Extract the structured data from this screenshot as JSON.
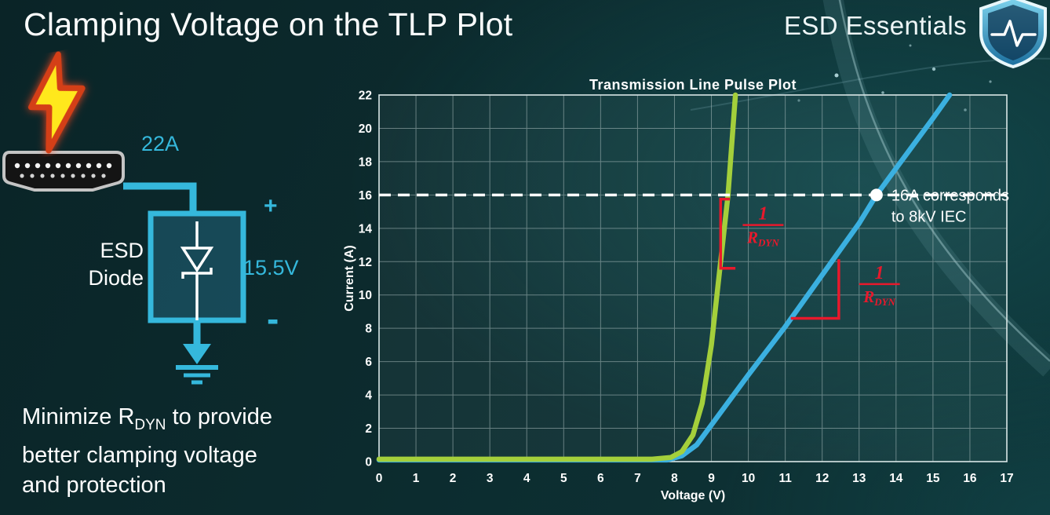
{
  "slide": {
    "title": "Clamping Voltage on the TLP Plot",
    "brand": "ESD Essentials",
    "colors": {
      "background_teal": "#0c2b2e",
      "accent_cyan": "#35b8dc",
      "accent_red": "#e8192c",
      "curve_green": "#a4cf3b",
      "curve_blue": "#3bb0e0",
      "text_white": "#ffffff"
    }
  },
  "diagram": {
    "surge_current": "22A",
    "device_line1": "ESD",
    "device_line2": "Diode",
    "plus_sign": "+",
    "minus_sign": "-",
    "clamp_voltage": "15.5V"
  },
  "caption": {
    "line1_pre": "Minimize R",
    "line1_sub": "DYN",
    "line1_post": " to provide",
    "line2": "better clamping voltage",
    "line3": "and protection"
  },
  "chart_data": {
    "type": "line",
    "title": "Transmission Line Pulse Plot",
    "xlabel": "Voltage (V)",
    "ylabel": "Current (A)",
    "xlim": [
      0,
      17
    ],
    "ylim": [
      0,
      22
    ],
    "x_ticks": [
      0,
      1,
      2,
      3,
      4,
      5,
      6,
      7,
      8,
      9,
      10,
      11,
      12,
      13,
      14,
      15,
      16,
      17
    ],
    "y_ticks": [
      0,
      2,
      4,
      6,
      8,
      10,
      12,
      14,
      16,
      18,
      20,
      22
    ],
    "grid": true,
    "legend": "none",
    "series": [
      {
        "name": "green-curve",
        "color": "#a4cf3b",
        "width": 6.5,
        "points": [
          [
            0,
            0.15
          ],
          [
            7.4,
            0.15
          ],
          [
            7.9,
            0.25
          ],
          [
            8.2,
            0.6
          ],
          [
            8.5,
            1.6
          ],
          [
            8.75,
            3.5
          ],
          [
            9.0,
            7.0
          ],
          [
            9.2,
            11.0
          ],
          [
            9.45,
            16.0
          ],
          [
            9.65,
            22.0
          ]
        ]
      },
      {
        "name": "blue-curve",
        "color": "#3bb0e0",
        "width": 6.5,
        "points": [
          [
            0,
            0.1
          ],
          [
            7.8,
            0.1
          ],
          [
            8.2,
            0.35
          ],
          [
            8.6,
            1.0
          ],
          [
            9.0,
            2.2
          ],
          [
            9.5,
            3.7
          ],
          [
            10,
            5.2
          ],
          [
            11,
            8.1
          ],
          [
            12,
            11.2
          ],
          [
            13,
            14.3
          ],
          [
            13.47,
            16.0
          ],
          [
            14,
            17.6
          ],
          [
            15,
            20.6
          ],
          [
            15.45,
            22.0
          ]
        ]
      }
    ],
    "ref_line": {
      "y": 16,
      "color": "#ffffff",
      "style": "dashed"
    },
    "marker": {
      "x": 13.47,
      "y": 16,
      "color": "#ffffff",
      "label_line1": "16A corresponds",
      "label_line2": "to 8kV IEC"
    },
    "slope_markers": [
      {
        "color": "#e8192c",
        "points": [
          [
            9.5,
            15.75
          ],
          [
            9.25,
            15.75
          ],
          [
            9.25,
            11.6
          ],
          [
            9.65,
            11.6
          ]
        ]
      },
      {
        "color": "#e8192c",
        "points": [
          [
            11.15,
            8.6
          ],
          [
            12.45,
            8.6
          ],
          [
            12.45,
            12.15
          ]
        ]
      }
    ],
    "fractions": [
      {
        "num": "1",
        "den": "R",
        "den_sub": "DYN",
        "x": 10.4,
        "y": 14.2,
        "color": "#e8192c"
      },
      {
        "num": "1",
        "den": "R",
        "den_sub": "DYN",
        "x": 13.55,
        "y": 10.65,
        "color": "#e8192c"
      }
    ]
  }
}
